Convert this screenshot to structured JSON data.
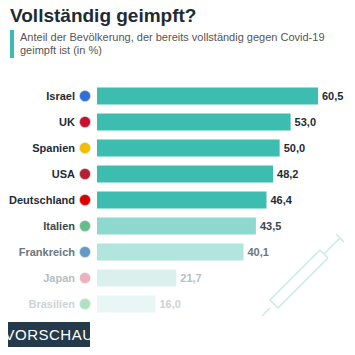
{
  "chart_data": {
    "type": "bar",
    "orientation": "horizontal",
    "title": "Vollständig geimpft?",
    "subtitle": "Anteil der Bevölkerung, der bereits vollständig gegen Covid-19 geimpft ist (in %)",
    "categories": [
      "Israel",
      "UK",
      "Spanien",
      "USA",
      "Deutschland",
      "Italien",
      "Frankreich",
      "Japan",
      "Brasilien"
    ],
    "values": [
      60.5,
      53.0,
      50.0,
      48.2,
      46.4,
      43.5,
      40.1,
      21.7,
      16.0
    ],
    "value_labels": [
      "60,5",
      "53,0",
      "50,0",
      "48,2",
      "46,4",
      "43,5",
      "40,1",
      "21,7",
      "16,0"
    ],
    "colors": [
      "#3dbdb0",
      "#3dbdb0",
      "#3dbdb0",
      "#3dbdb0",
      "#3dbdb0",
      "#8fd8d0",
      "#b3e5df",
      "#d9f0ed",
      "#e8f6f4"
    ],
    "xlim": [
      0,
      60.5
    ],
    "data_labels": true,
    "tick_labels": "y",
    "grid": false,
    "annotations": [
      "VORSCHAU"
    ]
  }
}
